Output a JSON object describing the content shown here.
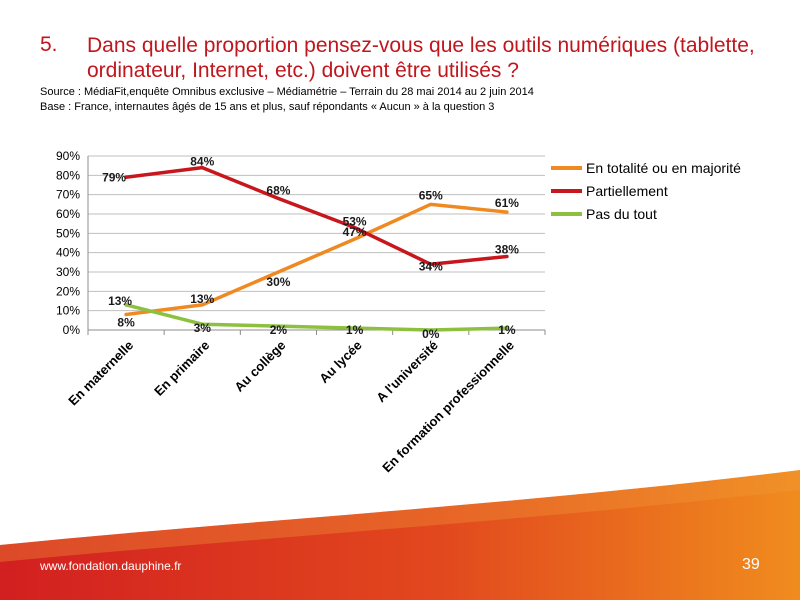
{
  "header": {
    "number": "5.",
    "title": "Dans quelle proportion pensez-vous que les outils numériques (tablette, ordinateur, Internet, etc.) doivent être utilisés ?",
    "source": "Source : MédiaFit,enquête Omnibus exclusive – Médiamétrie – Terrain du 28 mai 2014 au 2 juin 2014",
    "base": "Base : France, internautes âgés de 15 ans et plus, sauf répondants « Aucun » à la question 3"
  },
  "footer": {
    "url": "www.fondation.dauphine.fr",
    "page": "39"
  },
  "colors": {
    "title": "#c0161d",
    "footer_red": "#d7261f",
    "footer_orange": "#ef8a1f"
  },
  "chart_data": {
    "type": "line",
    "categories": [
      "En maternelle",
      "En primaire",
      "Au collège",
      "Au lycée",
      "A l'université",
      "En formation professionnelle"
    ],
    "series": [
      {
        "name": "En totalité ou en majorité",
        "color": "#ef8a22",
        "values": [
          8,
          13,
          30,
          47,
          65,
          61
        ],
        "labels": [
          "8%",
          "13%",
          "30%",
          "47%",
          "65%",
          "61%"
        ]
      },
      {
        "name": "Partiellement",
        "color": "#c8161d",
        "values": [
          79,
          84,
          68,
          53,
          34,
          38
        ],
        "labels": [
          "79%",
          "84%",
          "68%",
          "53%",
          "34%",
          "38%"
        ]
      },
      {
        "name": "Pas du tout",
        "color": "#8dc03f",
        "values": [
          13,
          3,
          2,
          1,
          0,
          1
        ],
        "labels": [
          "13%",
          "3%",
          "2%",
          "1%",
          "0%",
          "1%"
        ]
      }
    ],
    "y_ticks": [
      "0%",
      "10%",
      "20%",
      "30%",
      "40%",
      "50%",
      "60%",
      "70%",
      "80%",
      "90%"
    ],
    "ylim": [
      0,
      90
    ],
    "grid": true,
    "legend": "right"
  }
}
